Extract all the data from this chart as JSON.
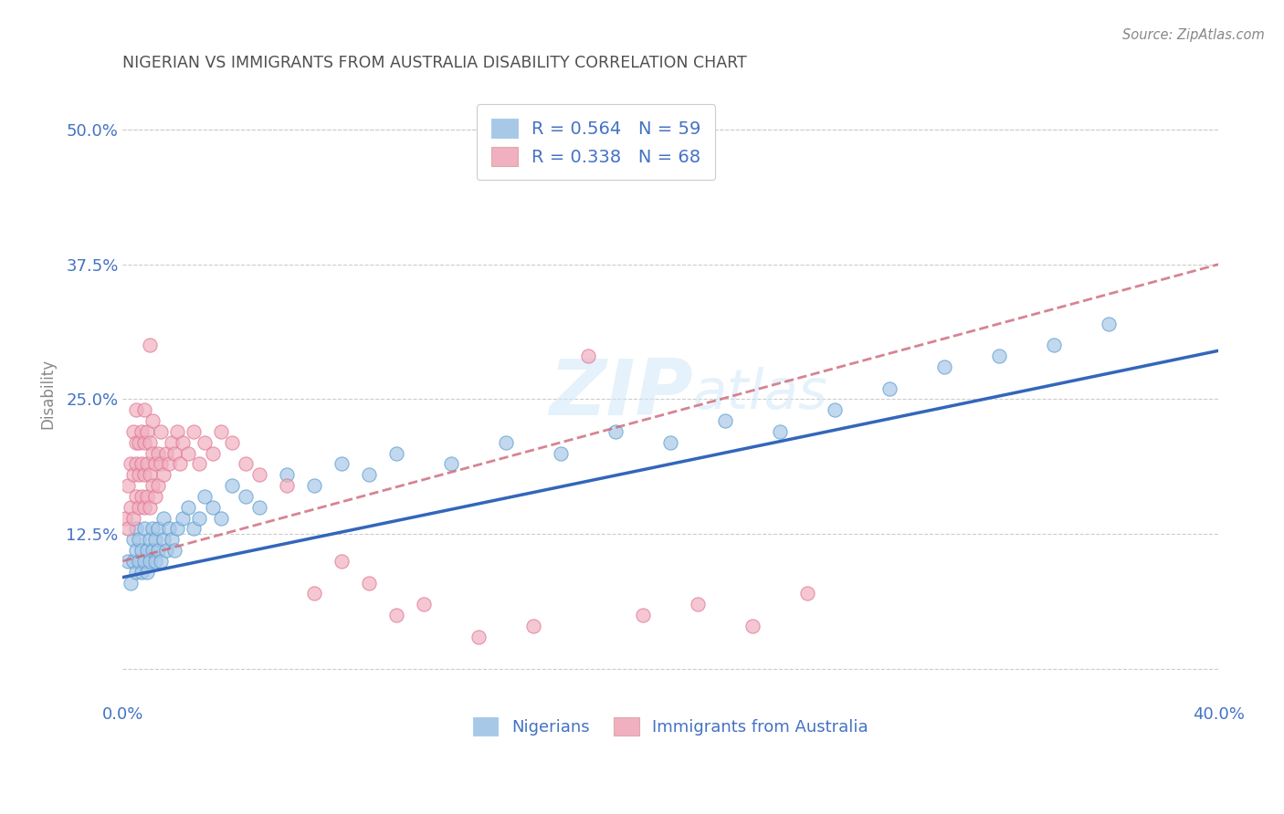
{
  "title": "NIGERIAN VS IMMIGRANTS FROM AUSTRALIA DISABILITY CORRELATION CHART",
  "source": "Source: ZipAtlas.com",
  "ylabel": "Disability",
  "yticks": [
    0.0,
    0.125,
    0.25,
    0.375,
    0.5
  ],
  "ytick_labels": [
    "",
    "12.5%",
    "25.0%",
    "37.5%",
    "50.0%"
  ],
  "xlim": [
    0.0,
    0.4
  ],
  "ylim": [
    -0.03,
    0.54
  ],
  "watermark": "ZIPatlas",
  "nigerians": {
    "color": "#a8c8e8",
    "border_color": "#5599cc",
    "R": 0.564,
    "N": 59,
    "label": "Nigerians",
    "x": [
      0.002,
      0.003,
      0.004,
      0.004,
      0.005,
      0.005,
      0.005,
      0.006,
      0.006,
      0.007,
      0.007,
      0.008,
      0.008,
      0.009,
      0.009,
      0.01,
      0.01,
      0.011,
      0.011,
      0.012,
      0.012,
      0.013,
      0.013,
      0.014,
      0.015,
      0.015,
      0.016,
      0.017,
      0.018,
      0.019,
      0.02,
      0.022,
      0.024,
      0.026,
      0.028,
      0.03,
      0.033,
      0.036,
      0.04,
      0.045,
      0.05,
      0.06,
      0.07,
      0.08,
      0.09,
      0.1,
      0.12,
      0.14,
      0.16,
      0.18,
      0.2,
      0.22,
      0.24,
      0.26,
      0.28,
      0.3,
      0.32,
      0.34,
      0.36
    ],
    "y": [
      0.1,
      0.08,
      0.12,
      0.1,
      0.11,
      0.13,
      0.09,
      0.1,
      0.12,
      0.09,
      0.11,
      0.1,
      0.13,
      0.11,
      0.09,
      0.1,
      0.12,
      0.11,
      0.13,
      0.1,
      0.12,
      0.11,
      0.13,
      0.1,
      0.12,
      0.14,
      0.11,
      0.13,
      0.12,
      0.11,
      0.13,
      0.14,
      0.15,
      0.13,
      0.14,
      0.16,
      0.15,
      0.14,
      0.17,
      0.16,
      0.15,
      0.18,
      0.17,
      0.19,
      0.18,
      0.2,
      0.19,
      0.21,
      0.2,
      0.22,
      0.21,
      0.23,
      0.22,
      0.24,
      0.26,
      0.28,
      0.29,
      0.3,
      0.32
    ]
  },
  "australia": {
    "color": "#f0b0c0",
    "border_color": "#e07090",
    "R": 0.338,
    "N": 68,
    "label": "Immigrants from Australia",
    "x": [
      0.001,
      0.002,
      0.002,
      0.003,
      0.003,
      0.004,
      0.004,
      0.004,
      0.005,
      0.005,
      0.005,
      0.005,
      0.006,
      0.006,
      0.006,
      0.007,
      0.007,
      0.007,
      0.008,
      0.008,
      0.008,
      0.008,
      0.009,
      0.009,
      0.009,
      0.01,
      0.01,
      0.01,
      0.011,
      0.011,
      0.011,
      0.012,
      0.012,
      0.013,
      0.013,
      0.014,
      0.014,
      0.015,
      0.016,
      0.017,
      0.018,
      0.019,
      0.02,
      0.021,
      0.022,
      0.024,
      0.026,
      0.028,
      0.03,
      0.033,
      0.036,
      0.04,
      0.045,
      0.05,
      0.06,
      0.07,
      0.08,
      0.09,
      0.1,
      0.11,
      0.13,
      0.15,
      0.17,
      0.19,
      0.21,
      0.23,
      0.25,
      0.01
    ],
    "y": [
      0.14,
      0.13,
      0.17,
      0.15,
      0.19,
      0.14,
      0.18,
      0.22,
      0.16,
      0.19,
      0.21,
      0.24,
      0.15,
      0.18,
      0.21,
      0.16,
      0.19,
      0.22,
      0.15,
      0.18,
      0.21,
      0.24,
      0.16,
      0.19,
      0.22,
      0.15,
      0.18,
      0.21,
      0.17,
      0.2,
      0.23,
      0.16,
      0.19,
      0.17,
      0.2,
      0.19,
      0.22,
      0.18,
      0.2,
      0.19,
      0.21,
      0.2,
      0.22,
      0.19,
      0.21,
      0.2,
      0.22,
      0.19,
      0.21,
      0.2,
      0.22,
      0.21,
      0.19,
      0.18,
      0.17,
      0.07,
      0.1,
      0.08,
      0.05,
      0.06,
      0.03,
      0.04,
      0.29,
      0.05,
      0.06,
      0.04,
      0.07,
      0.3
    ]
  },
  "line_blue_color": "#3366bb",
  "line_pink_color": "#cc6677",
  "bg_color": "#ffffff",
  "grid_color": "#cccccc",
  "title_color": "#505050",
  "axis_label_color": "#4472c4",
  "legend_text_color": "#4472c4"
}
